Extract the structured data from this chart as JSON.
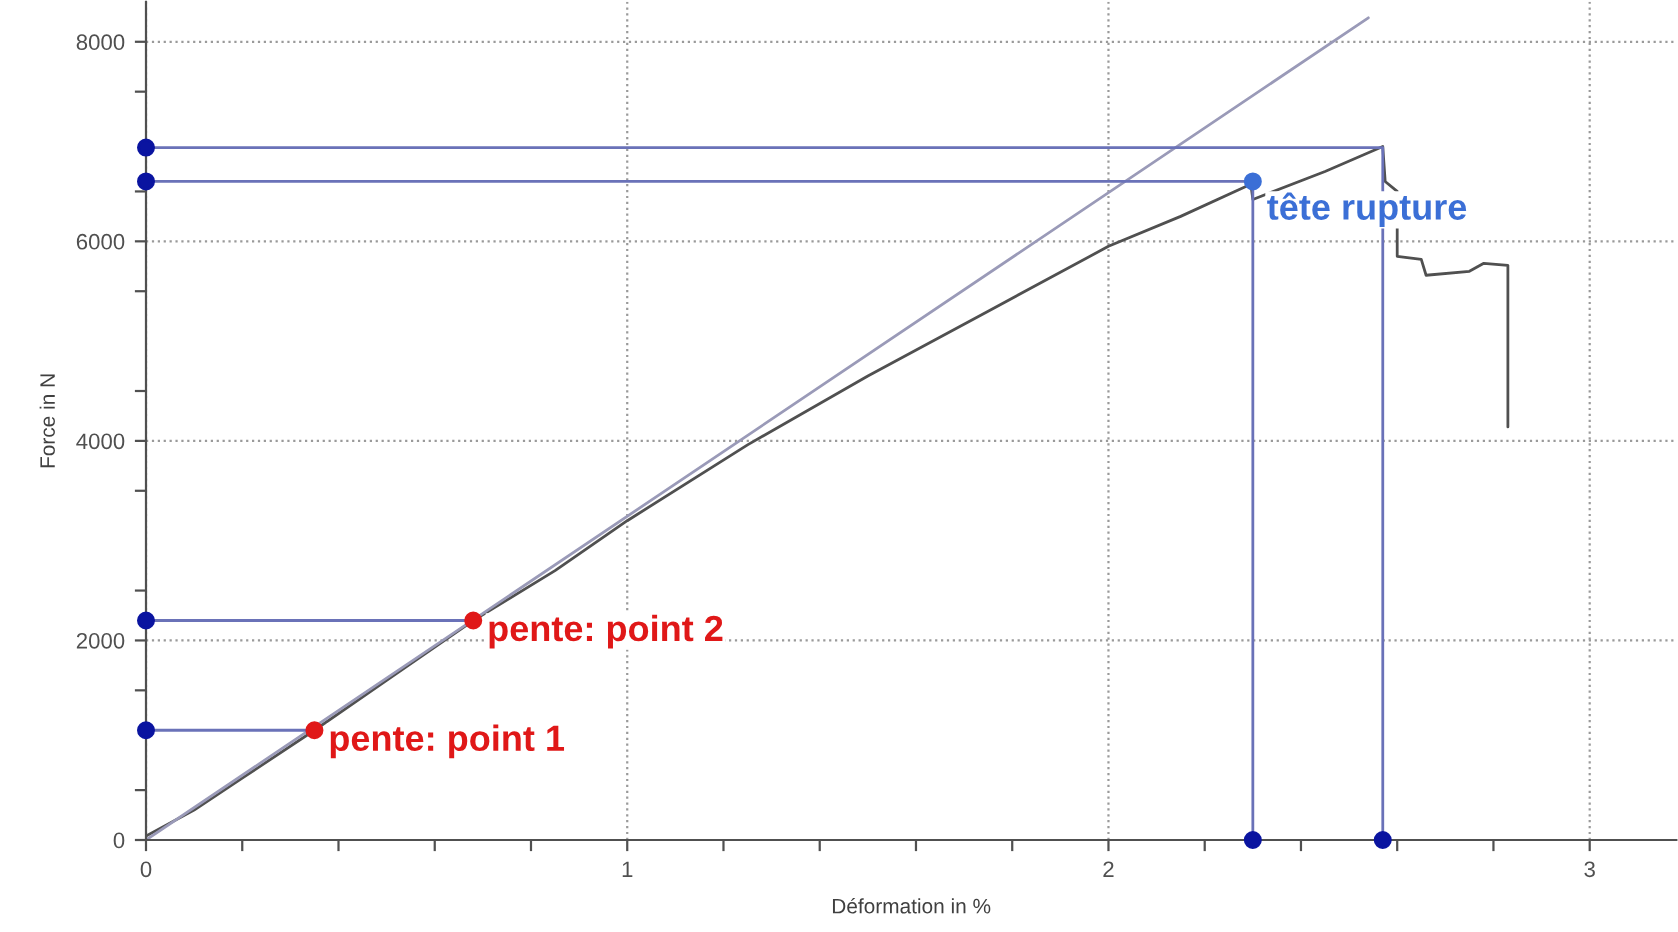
{
  "chart_data": {
    "type": "line",
    "xlabel": "Déformation in %",
    "ylabel": "Force in N",
    "xlim": [
      0,
      3.18
    ],
    "ylim": [
      0,
      8400
    ],
    "xticks": [
      0,
      {
        "value": 0.2,
        "label": null
      },
      {
        "value": 0.4,
        "label": null
      },
      {
        "value": 0.6,
        "label": null
      },
      {
        "value": 0.8,
        "label": null
      },
      1,
      {
        "value": 1.2,
        "label": null
      },
      {
        "value": 1.4,
        "label": null
      },
      {
        "value": 1.6,
        "label": null
      },
      {
        "value": 1.8,
        "label": null
      },
      2,
      {
        "value": 2.2,
        "label": null
      },
      {
        "value": 2.4,
        "label": null
      },
      {
        "value": 2.6,
        "label": null
      },
      {
        "value": 2.8,
        "label": null
      },
      3
    ],
    "yticks": [
      0,
      {
        "value": 500,
        "label": null
      },
      {
        "value": 1500,
        "label": null
      },
      2000,
      {
        "value": 2500,
        "label": null
      },
      {
        "value": 3500,
        "label": null
      },
      4000,
      {
        "value": 4500,
        "label": null
      },
      {
        "value": 5500,
        "label": null
      },
      6000,
      {
        "value": 6500,
        "label": null
      },
      {
        "value": 7500,
        "label": null
      },
      8000
    ],
    "grid": true,
    "series": [
      {
        "color": "#505050",
        "marker": "none",
        "x": [
          0,
          0.1,
          0.2,
          0.35,
          0.5,
          0.68,
          0.85,
          1.0,
          1.25,
          1.5,
          1.75,
          2.0,
          2.15,
          2.29,
          2.295,
          2.3,
          2.45,
          2.57,
          2.575,
          2.6,
          2.6,
          2.65,
          2.66,
          2.75,
          2.78,
          2.83,
          2.83
        ],
        "values": [
          40,
          300,
          620,
          1100,
          1600,
          2200,
          2700,
          3200,
          3960,
          4650,
          5300,
          5950,
          6250,
          6560,
          6600,
          6420,
          6700,
          6950,
          6600,
          6500,
          5850,
          5820,
          5660,
          5700,
          5780,
          5760,
          4140
        ]
      },
      {
        "color": "#9a9ab8",
        "marker": "none",
        "x": [
          0,
          2.54
        ],
        "values": [
          0,
          8240
        ]
      },
      {
        "type": "line",
        "color": "#6a72b8",
        "marker": "none",
        "x": [
          0,
          0.35
        ],
        "values": [
          1100,
          1100
        ]
      },
      {
        "type": "line",
        "color": "#6a72b8",
        "marker": "none",
        "x": [
          0,
          0.68
        ],
        "values": [
          2200,
          2200
        ]
      },
      {
        "type": "line",
        "color": "#6a72b8",
        "marker": "none",
        "x": [
          0,
          2.3,
          2.3
        ],
        "values": [
          6600,
          6600,
          0
        ]
      },
      {
        "type": "line",
        "color": "#6a72b8",
        "marker": "none",
        "x": [
          0,
          2.57,
          2.57
        ],
        "values": [
          6940,
          6940,
          0
        ]
      },
      {
        "type": "scatter",
        "color": "#0a14a0",
        "marker": "circle",
        "x": [
          0,
          0,
          0,
          0,
          2.3,
          2.57
        ],
        "values": [
          1100,
          2200,
          6600,
          6940,
          0,
          0
        ]
      },
      {
        "type": "scatter",
        "color": "#e01818",
        "marker": "circle",
        "x": [
          0.35,
          0.68
        ],
        "values": [
          1100,
          2200
        ]
      },
      {
        "type": "scatter",
        "color": "#3b6fd6",
        "marker": "circle",
        "x": [
          2.3
        ],
        "values": [
          6600
        ]
      }
    ],
    "annotations": [
      {
        "text": "pente: point 1",
        "x": 0.35,
        "y": 1100
      },
      {
        "text": "pente: point 2",
        "x": 0.68,
        "y": 2200
      },
      {
        "text": "tête rupture",
        "x": 2.3,
        "y": 6600
      }
    ]
  }
}
